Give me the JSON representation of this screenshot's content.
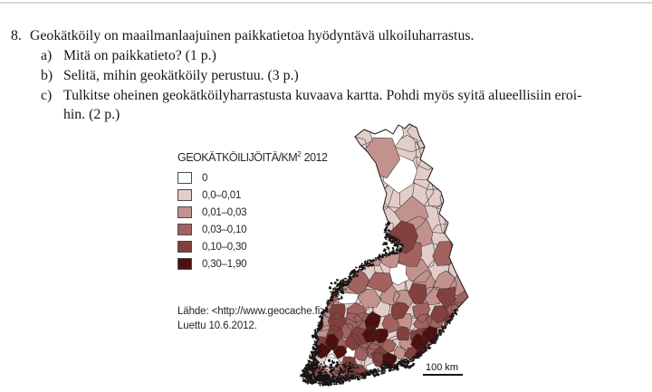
{
  "page": {
    "background": "#ffffff"
  },
  "question": {
    "number": "8.",
    "intro": "Geokätköily on maailmanlaajuinen paikkatietoa hyödyntävä ulkoiluharrastus.",
    "items": [
      {
        "label": "a)",
        "lines": [
          "Mitä on paikkatieto? (1 p.)"
        ]
      },
      {
        "label": "b)",
        "lines": [
          "Selitä, mihin geokätköily perustuu. (3 p.)"
        ]
      },
      {
        "label": "c)",
        "lines": [
          "Tulkitse oheinen geokätköilyharrastusta kuvaava kartta. Pohdi myös syitä alueellisiin eroi-",
          "hin. (2 p.)"
        ]
      }
    ]
  },
  "chart_data": {
    "type": "choropleth",
    "region": "Finland, municipalities",
    "title": "GEOKÄTKÖILIJÖITÄ/KM² 2012",
    "title_base": "GEOKÄTKÖILIJÖITÄ/KM",
    "title_sup": "2",
    "title_year": "2012",
    "classes": [
      {
        "label": "0",
        "color": "#ffffff"
      },
      {
        "label": "0,0–0,01",
        "color": "#e2cdc9"
      },
      {
        "label": "0,01–0,03",
        "color": "#c2938e"
      },
      {
        "label": "0,03–0,10",
        "color": "#a26260"
      },
      {
        "label": "0,10–0,30",
        "color": "#84403d"
      },
      {
        "label": "0,30–1,90",
        "color": "#4e100e"
      }
    ],
    "spatial_pattern": "Lowest densities (0 and 0,0–0,01) dominate northern and eastern Finland; densities increase toward the south-west; the highest classes (0,10–0,30 and 0,30–1,90) cluster around cities in southern and south-western Finland; heavily ragged black archipelago coastline along the western and southern coasts",
    "source_lines": [
      "Lähde: <http://www.geocache.fi>.",
      "Luettu 10.6.2012."
    ],
    "scale_bar_label": "100 km"
  }
}
